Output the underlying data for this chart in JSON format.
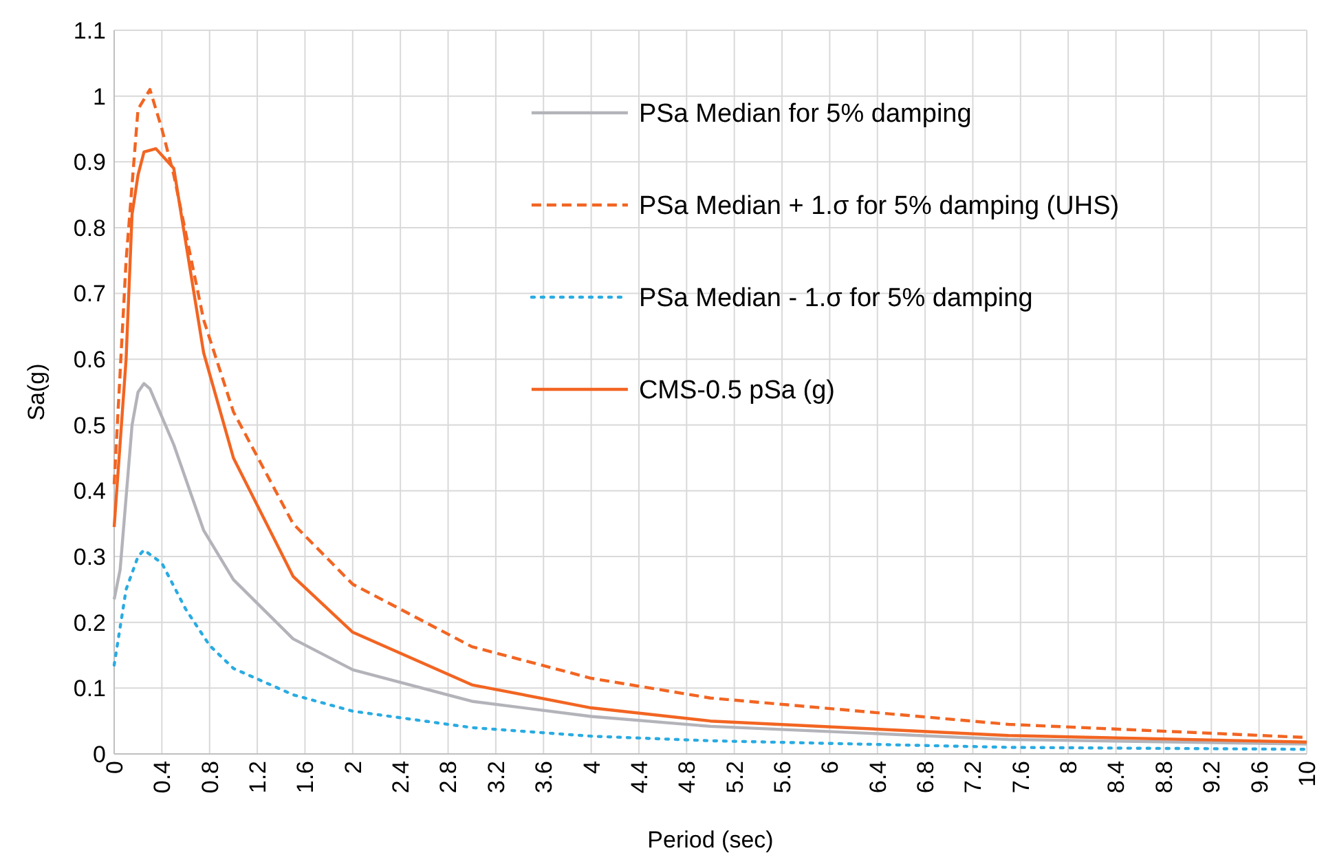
{
  "chart_data": {
    "type": "line",
    "xlabel": "Period (sec)",
    "ylabel": "Sa(g)",
    "xlim": [
      0,
      10
    ],
    "ylim": [
      0,
      1.1
    ],
    "xticks": [
      0,
      0.4,
      0.8,
      1.2,
      1.6,
      2,
      2.4,
      2.8,
      3.2,
      3.6,
      4,
      4.4,
      4.8,
      5.2,
      5.6,
      6,
      6.4,
      6.8,
      7.2,
      7.6,
      8,
      8.4,
      8.8,
      9.2,
      9.6,
      10
    ],
    "yticks": [
      0,
      0.1,
      0.2,
      0.3,
      0.4,
      0.5,
      0.6,
      0.7,
      0.8,
      0.9,
      1,
      1.1
    ],
    "grid": true,
    "legend": "top right",
    "marker": "none",
    "series": [
      {
        "name": "PSa Median for 5% damping",
        "color": "#b3b3ba",
        "line_style": "solid",
        "x": [
          0,
          0.05,
          0.15,
          0.2,
          0.25,
          0.3,
          0.5,
          0.75,
          1,
          1.5,
          2,
          3,
          4,
          5,
          7.5,
          10
        ],
        "values": [
          0.235,
          0.28,
          0.5,
          0.55,
          0.563,
          0.555,
          0.47,
          0.34,
          0.265,
          0.175,
          0.128,
          0.08,
          0.057,
          0.042,
          0.022,
          0.015
        ]
      },
      {
        "name": "PSa Median + 1.σ for 5% damping (UHS)",
        "color": "#f26522",
        "line_style": "dashed",
        "x": [
          0,
          0.1,
          0.2,
          0.3,
          0.4,
          0.5,
          0.75,
          1,
          1.5,
          2,
          3,
          4,
          5,
          7.5,
          10
        ],
        "values": [
          0.41,
          0.75,
          0.98,
          1.01,
          0.95,
          0.88,
          0.66,
          0.52,
          0.35,
          0.258,
          0.163,
          0.115,
          0.085,
          0.045,
          0.025
        ]
      },
      {
        "name": "PSa Median - 1.σ for 5% damping",
        "color": "#29abe2",
        "line_style": "dotted",
        "x": [
          0,
          0.1,
          0.2,
          0.25,
          0.4,
          0.6,
          0.8,
          1,
          1.5,
          2,
          3,
          4,
          5,
          7.5,
          10
        ],
        "values": [
          0.135,
          0.25,
          0.3,
          0.31,
          0.29,
          0.22,
          0.165,
          0.13,
          0.09,
          0.065,
          0.04,
          0.027,
          0.02,
          0.01,
          0.007
        ]
      },
      {
        "name": "CMS-0.5 pSa (g)",
        "color": "#f26522",
        "line_style": "solid",
        "x": [
          0,
          0.1,
          0.15,
          0.2,
          0.25,
          0.35,
          0.5,
          0.75,
          1,
          1.5,
          2,
          3,
          4,
          5,
          7.5,
          10
        ],
        "values": [
          0.345,
          0.6,
          0.82,
          0.88,
          0.915,
          0.92,
          0.89,
          0.61,
          0.45,
          0.27,
          0.185,
          0.105,
          0.07,
          0.05,
          0.028,
          0.018
        ]
      }
    ]
  }
}
